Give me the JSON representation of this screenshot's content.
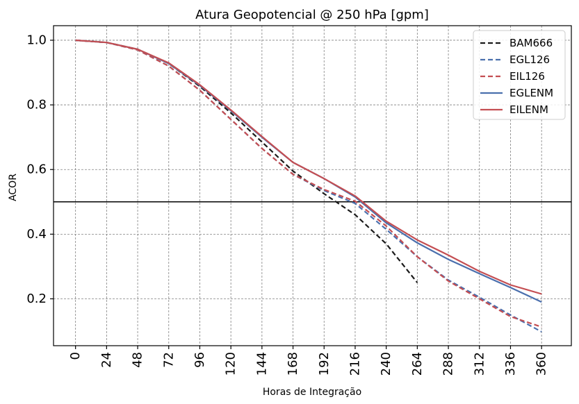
{
  "chart_data": {
    "type": "line",
    "title": "Atura Geopotencial @ 250 hPa [gpm]",
    "xlabel": "Horas de Integração",
    "ylabel": "ACOR",
    "x": [
      0,
      24,
      48,
      72,
      96,
      120,
      144,
      168,
      192,
      216,
      240,
      264,
      288,
      312,
      336,
      360
    ],
    "x_tick_labels": [
      "0",
      "24",
      "48",
      "72",
      "96",
      "120",
      "144",
      "168",
      "192",
      "216",
      "240",
      "264",
      "288",
      "312",
      "336",
      "360"
    ],
    "xlim": [
      -17,
      383
    ],
    "ylim": [
      0.055,
      1.045
    ],
    "y_ticks": [
      0.2,
      0.4,
      0.6,
      0.8,
      1.0
    ],
    "y_tick_labels": [
      "0.2",
      "0.4",
      "0.6",
      "0.8",
      "1.0"
    ],
    "grid": true,
    "legend_position": "top-right",
    "reference_line": {
      "y": 0.5,
      "color": "#000000"
    },
    "series": [
      {
        "name": "BAM666",
        "color": "#1a1a1a",
        "style": "dashed",
        "values": [
          1.0,
          0.993,
          0.972,
          0.928,
          0.857,
          0.775,
          0.685,
          0.595,
          0.525,
          0.46,
          0.37,
          0.25,
          null,
          null,
          null,
          null
        ]
      },
      {
        "name": "EGL126",
        "color": "#4a6fad",
        "style": "dashed",
        "values": [
          1.0,
          0.993,
          0.97,
          0.92,
          0.845,
          0.755,
          0.665,
          0.585,
          0.535,
          0.495,
          0.415,
          0.33,
          0.258,
          0.205,
          0.15,
          0.098
        ]
      },
      {
        "name": "EIL126",
        "color": "#c44e52",
        "style": "dashed",
        "values": [
          1.0,
          0.993,
          0.97,
          0.92,
          0.845,
          0.755,
          0.665,
          0.585,
          0.538,
          0.502,
          0.425,
          0.33,
          0.255,
          0.2,
          0.145,
          0.113
        ]
      },
      {
        "name": "EGLENM",
        "color": "#4a6fad",
        "style": "solid",
        "values": [
          1.0,
          0.993,
          0.972,
          0.928,
          0.86,
          0.782,
          0.7,
          0.622,
          0.572,
          0.515,
          0.435,
          0.373,
          0.322,
          0.278,
          0.235,
          0.19
        ]
      },
      {
        "name": "EILENM",
        "color": "#c44e52",
        "style": "solid",
        "values": [
          1.0,
          0.993,
          0.972,
          0.93,
          0.862,
          0.784,
          0.702,
          0.622,
          0.572,
          0.518,
          0.44,
          0.382,
          0.335,
          0.285,
          0.243,
          0.215
        ]
      }
    ]
  }
}
